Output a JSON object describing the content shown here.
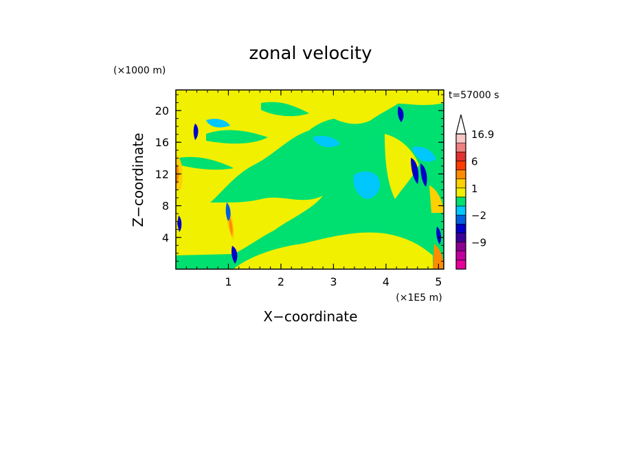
{
  "chart_data": {
    "type": "heatmap",
    "title": "zonal velocity",
    "xlabel": "X−coordinate",
    "ylabel": "Z−coordinate",
    "x_unit": "(×1E5 m)",
    "y_unit": "(×1000 m)",
    "time_label": "t=57000 s",
    "xlim": [
      0,
      5.1
    ],
    "ylim": [
      0,
      22.6
    ],
    "x_ticks": [
      "1",
      "2",
      "3",
      "4",
      "5"
    ],
    "y_ticks": [
      "4",
      "8",
      "12",
      "16",
      "20"
    ],
    "colorbar": {
      "labels": [
        "16.9",
        "6",
        "1",
        "−2",
        "−9"
      ],
      "levels": [
        -15,
        -12,
        -9,
        -6,
        -4,
        -2,
        -1,
        0,
        1,
        2,
        4,
        6,
        8,
        12,
        16.9
      ],
      "colors": [
        "#e8009a",
        "#c0009f",
        "#8a008f",
        "#3c009a",
        "#0000c8",
        "#0060e0",
        "#00c8ff",
        "#00e070",
        "#f0f000",
        "#ffd000",
        "#ff8c00",
        "#ff3c00",
        "#e03030",
        "#f08080",
        "#f8c8c8"
      ]
    }
  }
}
